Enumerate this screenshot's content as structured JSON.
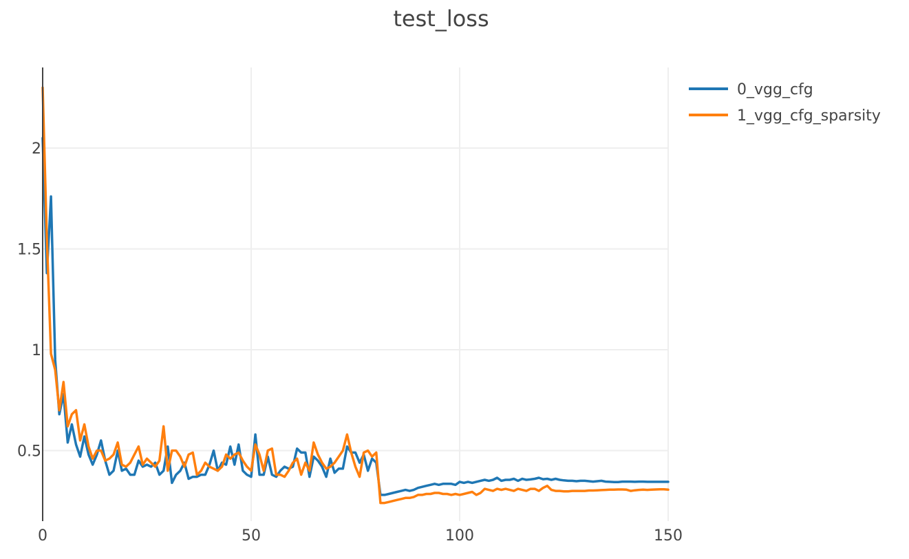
{
  "chart_data": {
    "type": "line",
    "title": "test_loss",
    "xlabel": "",
    "ylabel": "",
    "xlim": [
      0,
      150
    ],
    "ylim": [
      0.15,
      2.4
    ],
    "x_ticks": [
      0,
      50,
      100,
      150
    ],
    "x_tick_labels": [
      "0",
      "50",
      "100",
      "150"
    ],
    "y_ticks": [
      0.5,
      1,
      1.5,
      2
    ],
    "y_tick_labels": [
      "0.5",
      "1",
      "1.5",
      "2"
    ],
    "grid": true,
    "legend_position": "top-right",
    "x": [
      0,
      1,
      2,
      3,
      4,
      5,
      6,
      7,
      8,
      9,
      10,
      11,
      12,
      13,
      14,
      15,
      16,
      17,
      18,
      19,
      20,
      21,
      22,
      23,
      24,
      25,
      26,
      27,
      28,
      29,
      30,
      31,
      32,
      33,
      34,
      35,
      36,
      37,
      38,
      39,
      40,
      41,
      42,
      43,
      44,
      45,
      46,
      47,
      48,
      49,
      50,
      51,
      52,
      53,
      54,
      55,
      56,
      57,
      58,
      59,
      60,
      61,
      62,
      63,
      64,
      65,
      66,
      67,
      68,
      69,
      70,
      71,
      72,
      73,
      74,
      75,
      76,
      77,
      78,
      79,
      80,
      81,
      82,
      83,
      84,
      85,
      86,
      87,
      88,
      89,
      90,
      91,
      92,
      93,
      94,
      95,
      96,
      97,
      98,
      99,
      100,
      101,
      102,
      103,
      104,
      105,
      106,
      107,
      108,
      109,
      110,
      111,
      112,
      113,
      114,
      115,
      116,
      117,
      118,
      119,
      120,
      121,
      122,
      123,
      124,
      125,
      126,
      127,
      128,
      129,
      130,
      131,
      132,
      133,
      134,
      135,
      136,
      137,
      138,
      139,
      140,
      141,
      142,
      143,
      144,
      145,
      146,
      147,
      148,
      149,
      150
    ],
    "series": [
      {
        "name": "0_vgg_cfg",
        "color": "#1f77b4",
        "values": [
          2.05,
          1.38,
          1.76,
          0.95,
          0.68,
          0.78,
          0.54,
          0.63,
          0.53,
          0.47,
          0.57,
          0.48,
          0.43,
          0.48,
          0.55,
          0.45,
          0.38,
          0.4,
          0.5,
          0.4,
          0.41,
          0.38,
          0.38,
          0.45,
          0.42,
          0.43,
          0.42,
          0.44,
          0.38,
          0.4,
          0.52,
          0.34,
          0.38,
          0.4,
          0.44,
          0.36,
          0.37,
          0.37,
          0.38,
          0.38,
          0.43,
          0.5,
          0.4,
          0.44,
          0.43,
          0.52,
          0.43,
          0.53,
          0.4,
          0.38,
          0.37,
          0.58,
          0.38,
          0.38,
          0.47,
          0.38,
          0.37,
          0.4,
          0.42,
          0.41,
          0.42,
          0.51,
          0.49,
          0.49,
          0.37,
          0.47,
          0.45,
          0.42,
          0.37,
          0.46,
          0.39,
          0.41,
          0.41,
          0.52,
          0.49,
          0.49,
          0.44,
          0.48,
          0.4,
          0.46,
          0.44,
          0.28,
          0.28,
          0.285,
          0.29,
          0.295,
          0.3,
          0.305,
          0.3,
          0.305,
          0.315,
          0.32,
          0.325,
          0.33,
          0.335,
          0.33,
          0.335,
          0.335,
          0.335,
          0.33,
          0.345,
          0.34,
          0.345,
          0.34,
          0.345,
          0.35,
          0.355,
          0.35,
          0.355,
          0.365,
          0.35,
          0.355,
          0.355,
          0.36,
          0.35,
          0.36,
          0.355,
          0.357,
          0.36,
          0.365,
          0.358,
          0.36,
          0.355,
          0.36,
          0.355,
          0.352,
          0.35,
          0.35,
          0.348,
          0.35,
          0.35,
          0.348,
          0.346,
          0.348,
          0.35,
          0.346,
          0.345,
          0.344,
          0.344,
          0.346,
          0.346,
          0.346,
          0.345,
          0.346,
          0.346,
          0.345,
          0.345,
          0.345,
          0.345,
          0.345,
          0.345
        ]
      },
      {
        "name": "1_vgg_cfg_sparsity",
        "color": "#ff7f0e",
        "values": [
          2.3,
          1.55,
          0.98,
          0.9,
          0.7,
          0.84,
          0.62,
          0.68,
          0.7,
          0.55,
          0.63,
          0.52,
          0.46,
          0.5,
          0.5,
          0.45,
          0.46,
          0.48,
          0.54,
          0.43,
          0.42,
          0.44,
          0.48,
          0.52,
          0.43,
          0.46,
          0.44,
          0.42,
          0.45,
          0.62,
          0.4,
          0.5,
          0.5,
          0.47,
          0.42,
          0.48,
          0.49,
          0.38,
          0.4,
          0.44,
          0.42,
          0.41,
          0.4,
          0.42,
          0.48,
          0.46,
          0.48,
          0.49,
          0.45,
          0.42,
          0.4,
          0.53,
          0.48,
          0.4,
          0.5,
          0.51,
          0.38,
          0.38,
          0.37,
          0.4,
          0.44,
          0.46,
          0.38,
          0.44,
          0.4,
          0.54,
          0.48,
          0.44,
          0.41,
          0.42,
          0.44,
          0.47,
          0.5,
          0.58,
          0.49,
          0.42,
          0.37,
          0.49,
          0.5,
          0.47,
          0.49,
          0.24,
          0.24,
          0.245,
          0.25,
          0.255,
          0.26,
          0.265,
          0.265,
          0.27,
          0.28,
          0.28,
          0.285,
          0.285,
          0.29,
          0.29,
          0.285,
          0.285,
          0.28,
          0.285,
          0.28,
          0.285,
          0.29,
          0.295,
          0.28,
          0.29,
          0.31,
          0.305,
          0.3,
          0.31,
          0.305,
          0.31,
          0.305,
          0.3,
          0.31,
          0.305,
          0.3,
          0.31,
          0.31,
          0.3,
          0.315,
          0.325,
          0.305,
          0.3,
          0.3,
          0.298,
          0.298,
          0.3,
          0.3,
          0.3,
          0.3,
          0.302,
          0.302,
          0.303,
          0.304,
          0.305,
          0.306,
          0.306,
          0.307,
          0.307,
          0.306,
          0.3,
          0.303,
          0.305,
          0.306,
          0.305,
          0.306,
          0.307,
          0.308,
          0.308,
          0.306
        ]
      }
    ]
  }
}
